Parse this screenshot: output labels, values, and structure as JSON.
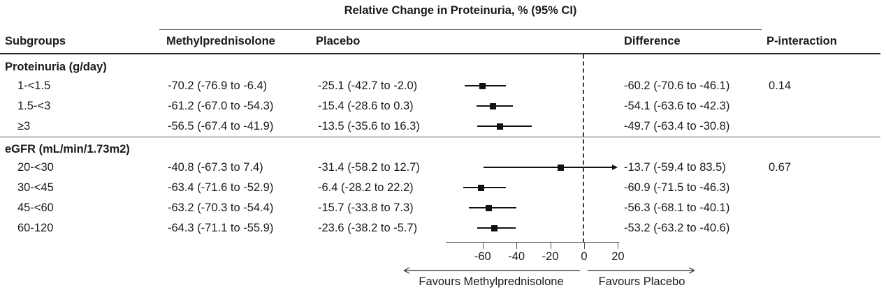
{
  "header": {
    "columns": {
      "subgroups": "Subgroups",
      "treatment": "Methylprednisolone",
      "control": "Placebo",
      "difference": "Difference",
      "p_interaction": "P-interaction"
    }
  },
  "chart_data": {
    "type": "scatter",
    "variant": "forest-plot",
    "title": "Relative Change in Proteinuria, % (95% CI)",
    "x_axis": {
      "ticks": [
        -60,
        -40,
        -20,
        0,
        20
      ],
      "tick_labels": [
        "-60",
        "-40",
        "-20",
        "0",
        "20"
      ],
      "range": [
        -82,
        20.7
      ],
      "zero_reference": 0,
      "zero_reference_style": "dashed"
    },
    "favours": {
      "left": "Favours Methylprednisolone",
      "right": "Favours Placebo"
    },
    "groups": [
      {
        "label": "Proteinuria (g/day)",
        "rows": [
          {
            "subgroup": "1-<1.5",
            "treatment": "-70.2 (-76.9 to -6.4)",
            "control": "-25.1 (-42.7 to -2.0)",
            "difference": "-60.2 (-70.6 to -46.1)",
            "p_interaction": "0.14",
            "est": -60.2,
            "lo": -70.6,
            "hi": -46.1
          },
          {
            "subgroup": "1.5-<3",
            "treatment": "-61.2 (-67.0 to -54.3)",
            "control": "-15.4 (-28.6 to 0.3)",
            "difference": "-54.1 (-63.6 to -42.3)",
            "p_interaction": "",
            "est": -54.1,
            "lo": -63.6,
            "hi": -42.3
          },
          {
            "subgroup": "≥3",
            "treatment": "-56.5 (-67.4 to -41.9)",
            "control": "-13.5 (-35.6 to 16.3)",
            "difference": "-49.7 (-63.4 to -30.8)",
            "p_interaction": "",
            "est": -49.7,
            "lo": -63.4,
            "hi": -30.8
          }
        ]
      },
      {
        "label": "eGFR (mL/min/1.73m2)",
        "rows": [
          {
            "subgroup": "20-<30",
            "treatment": "-40.8 (-67.3 to 7.4)",
            "control": "-31.4 (-58.2 to 12.7)",
            "difference": "-13.7 (-59.4 to 83.5)",
            "p_interaction": "0.67",
            "est": -13.7,
            "lo": -59.4,
            "hi": 83.5
          },
          {
            "subgroup": "30-<45",
            "treatment": "-63.4 (-71.6 to -52.9)",
            "control": "-6.4 (-28.2 to 22.2)",
            "difference": "-60.9 (-71.5 to -46.3)",
            "p_interaction": "",
            "est": -60.9,
            "lo": -71.5,
            "hi": -46.3
          },
          {
            "subgroup": "45-<60",
            "treatment": "-63.2 (-70.3 to -54.4)",
            "control": "-15.7 (-33.8 to 7.3)",
            "difference": "-56.3 (-68.1 to -40.1)",
            "p_interaction": "",
            "est": -56.3,
            "lo": -68.1,
            "hi": -40.1
          },
          {
            "subgroup": "60-120",
            "treatment": "-64.3 (-71.1 to -55.9)",
            "control": "-23.6 (-38.2 to -5.7)",
            "difference": "-53.2 (-63.2 to -40.6)",
            "p_interaction": "",
            "est": -53.2,
            "lo": -63.2,
            "hi": -40.6
          }
        ]
      }
    ],
    "colors": {
      "text": "#1a1a1a",
      "ci_line": "#111111",
      "marker": "#111111",
      "rule_thick": "#2e2e2e",
      "rule_thin": "#565656",
      "zero_line": "#3c3c3c",
      "background": "#ffffff"
    }
  }
}
